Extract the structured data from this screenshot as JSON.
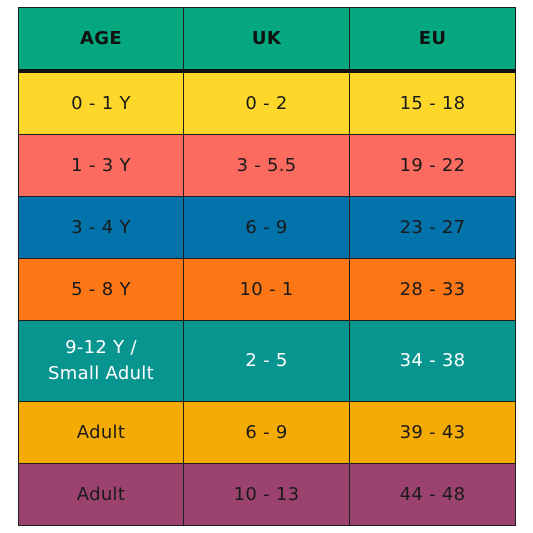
{
  "table": {
    "headers": [
      "AGE",
      "UK",
      "EU"
    ],
    "header_color": "#05a77e",
    "rows": [
      {
        "age": "0 - 1 Y",
        "uk": "0 - 2",
        "eu": "15 - 18",
        "color": "#fdd82a",
        "text_color": "#1a1a1a"
      },
      {
        "age": "1 - 3 Y",
        "uk": "3 - 5.5",
        "eu": "19 - 22",
        "color": "#fb6b5f",
        "text_color": "#1a1a1a"
      },
      {
        "age": "3 - 4 Y",
        "uk": "6 - 9",
        "eu": "23 - 27",
        "color": "#0273aa",
        "text_color": "#1a1a1a"
      },
      {
        "age": "5 - 8 Y",
        "uk": "10 - 1",
        "eu": "28 - 33",
        "color": "#fd7716",
        "text_color": "#1a1a1a"
      },
      {
        "age_line1": "9-12 Y /",
        "age_line2": "Small Adult",
        "uk": "2 - 5",
        "eu": "34 - 38",
        "color": "#089590",
        "text_color": "#ffffff"
      },
      {
        "age": "Adult",
        "uk": "6 - 9",
        "eu": "39 - 43",
        "color": "#f4ab04",
        "text_color": "#1a1a1a"
      },
      {
        "age": "Adult",
        "uk": "10 - 13",
        "eu": "44 - 48",
        "color": "#9b426e",
        "text_color": "#1a1a1a"
      }
    ]
  }
}
